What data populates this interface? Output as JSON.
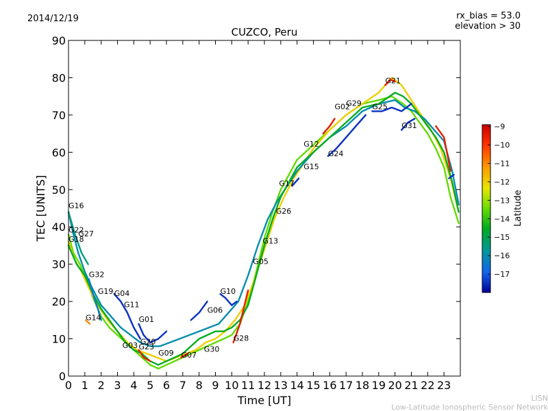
{
  "chart_data": {
    "type": "line",
    "date": "2014/12/19",
    "title": "CUZCO, Peru",
    "rx_bias": "rx_bias = 53.0",
    "elevation": "elevation > 30",
    "xlabel": "Time [UT]",
    "ylabel": "TEC [UNITS]",
    "xlim": [
      0,
      24
    ],
    "ylim": [
      0,
      90
    ],
    "xticks": [
      0,
      1,
      2,
      3,
      4,
      5,
      6,
      7,
      8,
      9,
      10,
      11,
      12,
      13,
      14,
      15,
      16,
      17,
      18,
      19,
      20,
      21,
      22,
      23
    ],
    "yticks": [
      0,
      10,
      20,
      30,
      40,
      50,
      60,
      70,
      80,
      90
    ],
    "colorbar": {
      "label": "Latitude",
      "min": -18,
      "max": -8.9,
      "ticks": [
        -9,
        -10,
        -11,
        -12,
        -13,
        -14,
        -15,
        -16,
        -17
      ]
    },
    "satellite_labels": [
      {
        "name": "G16",
        "x": 0.0,
        "y": 45
      },
      {
        "name": "G22",
        "x": 0.0,
        "y": 38.5
      },
      {
        "name": "G27",
        "x": 0.6,
        "y": 37.5
      },
      {
        "name": "G18",
        "x": 0.0,
        "y": 36
      },
      {
        "name": "G32",
        "x": 1.25,
        "y": 26.5
      },
      {
        "name": "G19",
        "x": 1.8,
        "y": 22
      },
      {
        "name": "G04",
        "x": 2.8,
        "y": 21.5
      },
      {
        "name": "G11",
        "x": 3.4,
        "y": 18.5
      },
      {
        "name": "G14",
        "x": 1.05,
        "y": 15
      },
      {
        "name": "G01",
        "x": 4.3,
        "y": 14.5
      },
      {
        "name": "G03",
        "x": 3.3,
        "y": 7.5
      },
      {
        "name": "G20",
        "x": 4.4,
        "y": 8.5
      },
      {
        "name": "G23",
        "x": 4.3,
        "y": 7.2
      },
      {
        "name": "G09",
        "x": 5.5,
        "y": 5.5
      },
      {
        "name": "G07",
        "x": 6.9,
        "y": 5.0
      },
      {
        "name": "G30",
        "x": 8.3,
        "y": 6.5
      },
      {
        "name": "G06",
        "x": 8.5,
        "y": 17
      },
      {
        "name": "G10",
        "x": 9.3,
        "y": 22
      },
      {
        "name": "G28",
        "x": 10.1,
        "y": 9.5
      },
      {
        "name": "G05",
        "x": 11.3,
        "y": 30
      },
      {
        "name": "G13",
        "x": 11.9,
        "y": 35.5
      },
      {
        "name": "G26",
        "x": 12.7,
        "y": 43.5
      },
      {
        "name": "G17",
        "x": 12.9,
        "y": 51
      },
      {
        "name": "G15",
        "x": 14.4,
        "y": 55.5
      },
      {
        "name": "G12",
        "x": 14.4,
        "y": 61.5
      },
      {
        "name": "G24",
        "x": 15.9,
        "y": 59
      },
      {
        "name": "G02",
        "x": 16.3,
        "y": 71.5
      },
      {
        "name": "G29",
        "x": 17.0,
        "y": 72.5
      },
      {
        "name": "G25",
        "x": 18.6,
        "y": 71.5
      },
      {
        "name": "G21",
        "x": 19.4,
        "y": 78.5
      },
      {
        "name": "G31",
        "x": 20.4,
        "y": 66.5
      }
    ],
    "series": [
      {
        "name": "envelope-1",
        "latitude": -13.5,
        "x": [
          0,
          0.3,
          0.7,
          1,
          1.5,
          2,
          2.5,
          3,
          3.5,
          4,
          4.5,
          5,
          5.5,
          6,
          6.5,
          7,
          7.5,
          8,
          8.5,
          9,
          9.5,
          10,
          10.5,
          11,
          11.5,
          12,
          12.5,
          13,
          13.5,
          14,
          15,
          16,
          17,
          18,
          19,
          19.8,
          20.5,
          21,
          21.5,
          22,
          22.5,
          23,
          23.4,
          23.9
        ],
        "y": [
          38,
          33,
          30,
          27,
          21,
          16,
          13,
          11,
          9,
          7,
          5,
          3,
          2,
          3,
          4,
          5,
          6,
          7,
          8,
          9,
          10,
          11,
          14,
          20,
          28,
          37,
          44,
          50,
          54,
          58,
          62,
          66,
          70,
          73,
          74,
          75,
          73,
          71,
          68,
          65,
          61,
          56,
          48,
          41
        ]
      },
      {
        "name": "envelope-2",
        "latitude": -12,
        "x": [
          0,
          0.4,
          0.8,
          1.2,
          1.8,
          2.4,
          3,
          3.6,
          4.2,
          4.8,
          5.4,
          6,
          6.6,
          7.2,
          7.8,
          8.4,
          9,
          9.6,
          10.2,
          10.8,
          11.4,
          12,
          12.6,
          13.2,
          13.8,
          14.4,
          15,
          16,
          17,
          18,
          19,
          19.8,
          20.4,
          21,
          21.6,
          22.2,
          22.8,
          23.4,
          23.9
        ],
        "y": [
          36,
          31,
          28,
          24,
          19,
          15,
          12,
          9,
          7,
          6,
          5,
          4,
          5,
          6,
          7,
          9,
          10,
          12,
          15,
          19,
          26,
          34,
          42,
          48,
          53,
          57,
          61,
          66,
          70,
          73,
          76,
          80,
          78,
          74,
          70,
          66,
          61,
          53,
          44
        ]
      },
      {
        "name": "envelope-3",
        "latitude": -16,
        "x": [
          0,
          0.3,
          0.6,
          1,
          1.4,
          2,
          2.6,
          3.2,
          3.8,
          4.4,
          5,
          5.6,
          6.2,
          6.8,
          7.4,
          8,
          8.6,
          9.2,
          9.8,
          10.4,
          11,
          11.6,
          12.2,
          12.8,
          13.4,
          14,
          15,
          16,
          17,
          18,
          19,
          20,
          20.6,
          21.2,
          21.8,
          22.4,
          23,
          23.5,
          23.9
        ],
        "y": [
          44,
          38,
          33,
          28,
          24,
          19,
          16,
          13,
          11,
          9,
          8,
          8,
          9,
          10,
          11,
          12,
          13,
          14,
          17,
          20,
          27,
          35,
          42,
          47,
          51,
          55,
          60,
          64,
          67,
          71,
          73,
          74,
          72,
          71,
          69,
          66,
          63,
          55,
          46
        ]
      },
      {
        "name": "envelope-4",
        "latitude": -14.5,
        "x": [
          0,
          0.5,
          1,
          1.5,
          2,
          2.5,
          3,
          3.5,
          4,
          4.5,
          5,
          5.5,
          6,
          6.5,
          7,
          7.5,
          8,
          8.5,
          9,
          9.5,
          10,
          10.5,
          11,
          11.5,
          12,
          12.5,
          13,
          13.5,
          14,
          15,
          16,
          17,
          18,
          19,
          20,
          20.5,
          21,
          21.5,
          22,
          22.5,
          23,
          23.5,
          23.9
        ],
        "y": [
          35,
          30,
          27,
          22,
          18,
          15,
          12,
          9,
          7,
          6,
          4,
          3,
          4,
          5,
          6,
          8,
          10,
          11,
          12,
          12,
          13,
          15,
          19,
          27,
          35,
          42,
          48,
          52,
          56,
          60,
          64,
          68,
          72,
          73,
          76,
          75,
          73,
          70,
          67,
          64,
          60,
          52,
          44
        ]
      },
      {
        "name": "G01",
        "latitude": -17.5,
        "x": [
          4.3,
          4.6,
          5,
          5.5,
          6
        ],
        "y": [
          14,
          11,
          9,
          10,
          12
        ]
      },
      {
        "name": "G04",
        "latitude": -17.5,
        "x": [
          2.8,
          3.2,
          3.6,
          4,
          4.4
        ],
        "y": [
          22,
          20,
          17,
          13,
          10
        ]
      },
      {
        "name": "G10",
        "latitude": -17.5,
        "x": [
          9.3,
          9.6,
          10,
          10.3
        ],
        "y": [
          22,
          21,
          19,
          20
        ]
      },
      {
        "name": "G06",
        "latitude": -17.5,
        "x": [
          7.5,
          8,
          8.5
        ],
        "y": [
          15,
          17,
          20
        ]
      },
      {
        "name": "G24",
        "latitude": -17.5,
        "x": [
          15.9,
          16.4,
          17,
          17.6,
          18.2
        ],
        "y": [
          59,
          61,
          64,
          67,
          70
        ]
      },
      {
        "name": "G25",
        "latitude": -17.5,
        "x": [
          18.6,
          19.2,
          19.8,
          20.4,
          21
        ],
        "y": [
          71,
          71,
          72,
          71,
          73
        ]
      },
      {
        "name": "G31",
        "latitude": -17.5,
        "x": [
          20.4,
          20.8,
          21.2
        ],
        "y": [
          66,
          68,
          69
        ]
      },
      {
        "name": "G21",
        "latitude": -9.5,
        "x": [
          19.4,
          19.7,
          20
        ],
        "y": [
          78,
          79.5,
          79
        ]
      },
      {
        "name": "G02",
        "latitude": -9.5,
        "x": [
          15.6,
          16,
          16.3
        ],
        "y": [
          65,
          67,
          69
        ]
      },
      {
        "name": "G28",
        "latitude": -9.5,
        "x": [
          10.1,
          10.5,
          11
        ],
        "y": [
          9,
          14,
          23
        ]
      },
      {
        "name": "G23",
        "latitude": -9.5,
        "x": [
          4.3,
          4.6,
          5
        ],
        "y": [
          7,
          5,
          4
        ]
      },
      {
        "name": "G07",
        "latitude": -9.5,
        "x": [
          6.9,
          7.3
        ],
        "y": [
          5,
          6
        ]
      },
      {
        "name": "G14",
        "latitude": -11,
        "x": [
          1.05,
          1.3
        ],
        "y": [
          15,
          14
        ]
      },
      {
        "name": "G16",
        "latitude": -15.5,
        "x": [
          0,
          0.4,
          0.8,
          1.2
        ],
        "y": [
          44,
          38,
          33,
          30
        ]
      },
      {
        "name": "G32",
        "latitude": -16.5,
        "x": [
          1.25,
          1.5,
          1.8,
          2
        ],
        "y": [
          26,
          22,
          18,
          15
        ]
      },
      {
        "name": "G05",
        "latitude": -17.5,
        "x": [
          13.7,
          14.1
        ],
        "y": [
          51,
          53
        ]
      },
      {
        "name": "late-red",
        "latitude": -9.5,
        "x": [
          22.5,
          23,
          23.4
        ],
        "y": [
          67,
          64,
          55
        ]
      },
      {
        "name": "late-blue",
        "latitude": -17.5,
        "x": [
          23.3,
          23.6
        ],
        "y": [
          53,
          54
        ]
      }
    ]
  },
  "footer": {
    "line1": "LISN",
    "line2": "Low-Latitude Ionospheric Sensor Network"
  }
}
